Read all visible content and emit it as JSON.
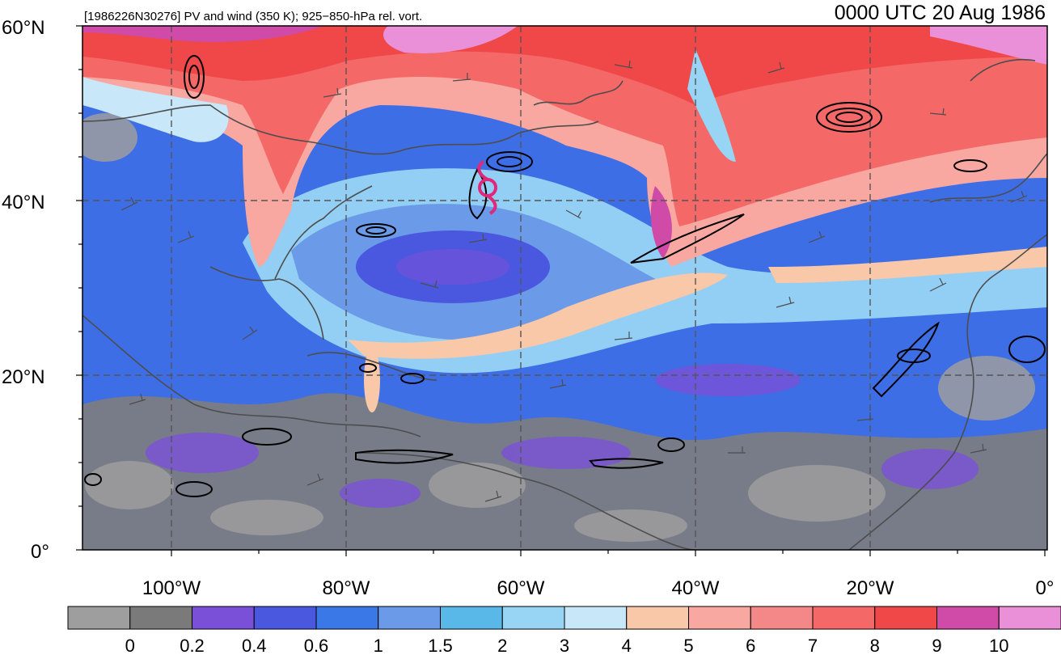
{
  "header": {
    "left_title": "[1986226N30276] PV and wind (350 K); 925−850-hPa rel. vort.",
    "right_title": "0000 UTC 20 Aug 1986"
  },
  "map": {
    "lat_labels": [
      "60°N",
      "40°N",
      "20°N",
      "0°"
    ],
    "lon_labels": [
      "100°W",
      "80°W",
      "60°W",
      "40°W",
      "20°W",
      "0°"
    ],
    "storm_symbol": "tropical-cyclone-icon",
    "storm_color": "#e0287a"
  },
  "colorbar": {
    "colors": [
      "#9e9e9e",
      "#7a7a7a",
      "#7a50d8",
      "#4a58e0",
      "#3a78e8",
      "#6a9ae8",
      "#5ab8e8",
      "#98d4f4",
      "#c8e8fa",
      "#f8c8a8",
      "#f8a8a0",
      "#f48888",
      "#f46868",
      "#f04848",
      "#d04aa8",
      "#ea90d8"
    ],
    "labels": [
      "0",
      "0.2",
      "0.4",
      "0.6",
      "1",
      "1.5",
      "2",
      "3",
      "4",
      "5",
      "6",
      "7",
      "8",
      "9",
      "10"
    ]
  }
}
